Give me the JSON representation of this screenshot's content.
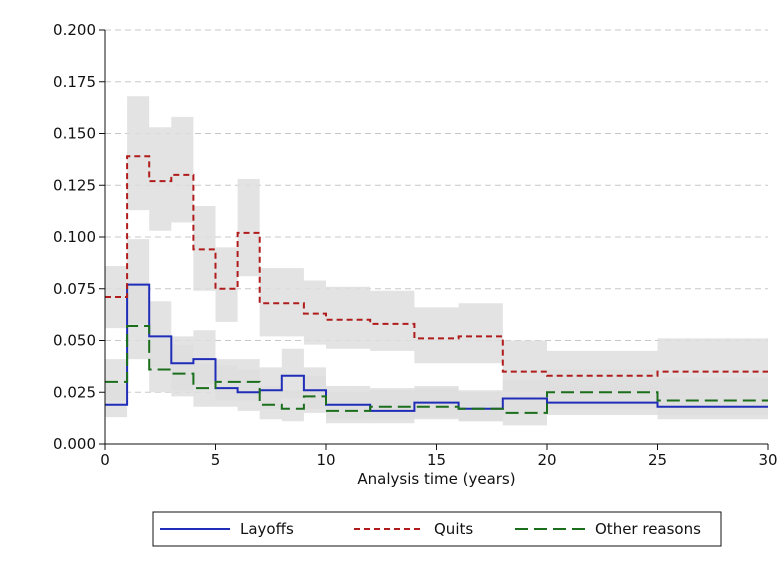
{
  "chart_data": {
    "type": "line",
    "subtype": "step-with-confidence-bands",
    "xlabel": "Analysis time (years)",
    "ylabel": "",
    "xlim": [
      0,
      30
    ],
    "ylim": [
      0,
      0.2
    ],
    "xticks": [
      "0",
      "5",
      "10",
      "15",
      "20",
      "25",
      "30"
    ],
    "yticks": [
      "0.000",
      "0.025",
      "0.050",
      "0.075",
      "0.100",
      "0.125",
      "0.150",
      "0.175",
      "0.200"
    ],
    "grid": "horizontal dashed",
    "legend_position": "bottom",
    "series": [
      {
        "name": "Layoffs",
        "color": "#1f2db8",
        "dash": "solid",
        "steps": [
          {
            "x0": 0,
            "x1": 1,
            "y": 0.019
          },
          {
            "x0": 1,
            "x1": 2,
            "y": 0.077
          },
          {
            "x0": 2,
            "x1": 3,
            "y": 0.052
          },
          {
            "x0": 3,
            "x1": 4,
            "y": 0.039
          },
          {
            "x0": 4,
            "x1": 5,
            "y": 0.041
          },
          {
            "x0": 5,
            "x1": 6,
            "y": 0.027
          },
          {
            "x0": 6,
            "x1": 7,
            "y": 0.025
          },
          {
            "x0": 7,
            "x1": 8,
            "y": 0.026
          },
          {
            "x0": 8,
            "x1": 9,
            "y": 0.033
          },
          {
            "x0": 9,
            "x1": 10,
            "y": 0.026
          },
          {
            "x0": 10,
            "x1": 12,
            "y": 0.019
          },
          {
            "x0": 12,
            "x1": 14,
            "y": 0.016
          },
          {
            "x0": 14,
            "x1": 16,
            "y": 0.02
          },
          {
            "x0": 16,
            "x1": 18,
            "y": 0.017
          },
          {
            "x0": 18,
            "x1": 20,
            "y": 0.022
          },
          {
            "x0": 20,
            "x1": 25,
            "y": 0.02
          },
          {
            "x0": 25,
            "x1": 30,
            "y": 0.018
          }
        ]
      },
      {
        "name": "Quits",
        "color": "#b01c1c",
        "dash": "short",
        "steps": [
          {
            "x0": 0,
            "x1": 1,
            "y": 0.071
          },
          {
            "x0": 1,
            "x1": 2,
            "y": 0.139
          },
          {
            "x0": 2,
            "x1": 3,
            "y": 0.127
          },
          {
            "x0": 3,
            "x1": 4,
            "y": 0.13
          },
          {
            "x0": 4,
            "x1": 5,
            "y": 0.094
          },
          {
            "x0": 5,
            "x1": 6,
            "y": 0.075
          },
          {
            "x0": 6,
            "x1": 7,
            "y": 0.102
          },
          {
            "x0": 7,
            "x1": 9,
            "y": 0.068
          },
          {
            "x0": 9,
            "x1": 10,
            "y": 0.063
          },
          {
            "x0": 10,
            "x1": 12,
            "y": 0.06
          },
          {
            "x0": 12,
            "x1": 14,
            "y": 0.058
          },
          {
            "x0": 14,
            "x1": 16,
            "y": 0.051
          },
          {
            "x0": 16,
            "x1": 18,
            "y": 0.052
          },
          {
            "x0": 18,
            "x1": 20,
            "y": 0.035
          },
          {
            "x0": 20,
            "x1": 25,
            "y": 0.033
          },
          {
            "x0": 25,
            "x1": 30,
            "y": 0.035
          }
        ]
      },
      {
        "name": "Other reasons",
        "color": "#1b6e1b",
        "dash": "long",
        "steps": [
          {
            "x0": 0,
            "x1": 1,
            "y": 0.03
          },
          {
            "x0": 1,
            "x1": 2,
            "y": 0.057
          },
          {
            "x0": 2,
            "x1": 3,
            "y": 0.036
          },
          {
            "x0": 3,
            "x1": 4,
            "y": 0.034
          },
          {
            "x0": 4,
            "x1": 5,
            "y": 0.027
          },
          {
            "x0": 5,
            "x1": 7,
            "y": 0.03
          },
          {
            "x0": 7,
            "x1": 8,
            "y": 0.019
          },
          {
            "x0": 8,
            "x1": 9,
            "y": 0.017
          },
          {
            "x0": 9,
            "x1": 10,
            "y": 0.023
          },
          {
            "x0": 10,
            "x1": 12,
            "y": 0.016
          },
          {
            "x0": 12,
            "x1": 16,
            "y": 0.018
          },
          {
            "x0": 16,
            "x1": 18,
            "y": 0.017
          },
          {
            "x0": 18,
            "x1": 20,
            "y": 0.015
          },
          {
            "x0": 20,
            "x1": 25,
            "y": 0.025
          },
          {
            "x0": 25,
            "x1": 30,
            "y": 0.021
          }
        ]
      }
    ],
    "confidence_bands": {
      "color": "#dedede",
      "bands": [
        {
          "series": "Quits",
          "steps": [
            {
              "x0": 0,
              "x1": 1,
              "lo": 0.056,
              "hi": 0.086
            },
            {
              "x0": 1,
              "x1": 2,
              "lo": 0.113,
              "hi": 0.168
            },
            {
              "x0": 2,
              "x1": 3,
              "lo": 0.103,
              "hi": 0.153
            },
            {
              "x0": 3,
              "x1": 4,
              "lo": 0.107,
              "hi": 0.158
            },
            {
              "x0": 4,
              "x1": 5,
              "lo": 0.074,
              "hi": 0.115
            },
            {
              "x0": 5,
              "x1": 6,
              "lo": 0.059,
              "hi": 0.095
            },
            {
              "x0": 6,
              "x1": 7,
              "lo": 0.081,
              "hi": 0.128
            },
            {
              "x0": 7,
              "x1": 9,
              "lo": 0.052,
              "hi": 0.085
            },
            {
              "x0": 9,
              "x1": 10,
              "lo": 0.048,
              "hi": 0.079
            },
            {
              "x0": 10,
              "x1": 12,
              "lo": 0.046,
              "hi": 0.076
            },
            {
              "x0": 12,
              "x1": 14,
              "lo": 0.045,
              "hi": 0.074
            },
            {
              "x0": 14,
              "x1": 16,
              "lo": 0.039,
              "hi": 0.066
            },
            {
              "x0": 16,
              "x1": 18,
              "lo": 0.039,
              "hi": 0.068
            },
            {
              "x0": 18,
              "x1": 20,
              "lo": 0.025,
              "hi": 0.05
            },
            {
              "x0": 20,
              "x1": 25,
              "lo": 0.025,
              "hi": 0.045
            },
            {
              "x0": 25,
              "x1": 30,
              "lo": 0.024,
              "hi": 0.051
            }
          ]
        },
        {
          "series": "Layoffs",
          "steps": [
            {
              "x0": 0,
              "x1": 1,
              "lo": 0.013,
              "hi": 0.029
            },
            {
              "x0": 1,
              "x1": 2,
              "lo": 0.058,
              "hi": 0.099
            },
            {
              "x0": 2,
              "x1": 3,
              "lo": 0.037,
              "hi": 0.069
            },
            {
              "x0": 3,
              "x1": 4,
              "lo": 0.026,
              "hi": 0.052
            },
            {
              "x0": 4,
              "x1": 5,
              "lo": 0.029,
              "hi": 0.055
            },
            {
              "x0": 5,
              "x1": 6,
              "lo": 0.018,
              "hi": 0.038
            },
            {
              "x0": 6,
              "x1": 7,
              "lo": 0.016,
              "hi": 0.036
            },
            {
              "x0": 7,
              "x1": 8,
              "lo": 0.017,
              "hi": 0.037
            },
            {
              "x0": 8,
              "x1": 9,
              "lo": 0.022,
              "hi": 0.046
            },
            {
              "x0": 9,
              "x1": 10,
              "lo": 0.017,
              "hi": 0.037
            },
            {
              "x0": 10,
              "x1": 12,
              "lo": 0.012,
              "hi": 0.028
            },
            {
              "x0": 12,
              "x1": 14,
              "lo": 0.01,
              "hi": 0.026
            },
            {
              "x0": 14,
              "x1": 16,
              "lo": 0.013,
              "hi": 0.028
            },
            {
              "x0": 16,
              "x1": 18,
              "lo": 0.011,
              "hi": 0.026
            },
            {
              "x0": 18,
              "x1": 20,
              "lo": 0.014,
              "hi": 0.031
            },
            {
              "x0": 20,
              "x1": 25,
              "lo": 0.014,
              "hi": 0.028
            },
            {
              "x0": 25,
              "x1": 30,
              "lo": 0.012,
              "hi": 0.025
            }
          ]
        },
        {
          "series": "Other reasons",
          "steps": [
            {
              "x0": 0,
              "x1": 1,
              "lo": 0.021,
              "hi": 0.041
            },
            {
              "x0": 1,
              "x1": 2,
              "lo": 0.041,
              "hi": 0.078
            },
            {
              "x0": 2,
              "x1": 3,
              "lo": 0.025,
              "hi": 0.051
            },
            {
              "x0": 3,
              "x1": 4,
              "lo": 0.023,
              "hi": 0.048
            },
            {
              "x0": 4,
              "x1": 5,
              "lo": 0.018,
              "hi": 0.039
            },
            {
              "x0": 5,
              "x1": 7,
              "lo": 0.021,
              "hi": 0.041
            },
            {
              "x0": 7,
              "x1": 8,
              "lo": 0.012,
              "hi": 0.028
            },
            {
              "x0": 8,
              "x1": 9,
              "lo": 0.011,
              "hi": 0.026
            },
            {
              "x0": 9,
              "x1": 10,
              "lo": 0.015,
              "hi": 0.033
            },
            {
              "x0": 10,
              "x1": 12,
              "lo": 0.01,
              "hi": 0.025
            },
            {
              "x0": 12,
              "x1": 16,
              "lo": 0.012,
              "hi": 0.027
            },
            {
              "x0": 16,
              "x1": 18,
              "lo": 0.011,
              "hi": 0.025
            },
            {
              "x0": 18,
              "x1": 20,
              "lo": 0.009,
              "hi": 0.024
            },
            {
              "x0": 20,
              "x1": 25,
              "lo": 0.017,
              "hi": 0.036
            },
            {
              "x0": 25,
              "x1": 30,
              "lo": 0.014,
              "hi": 0.032
            }
          ]
        }
      ]
    }
  }
}
